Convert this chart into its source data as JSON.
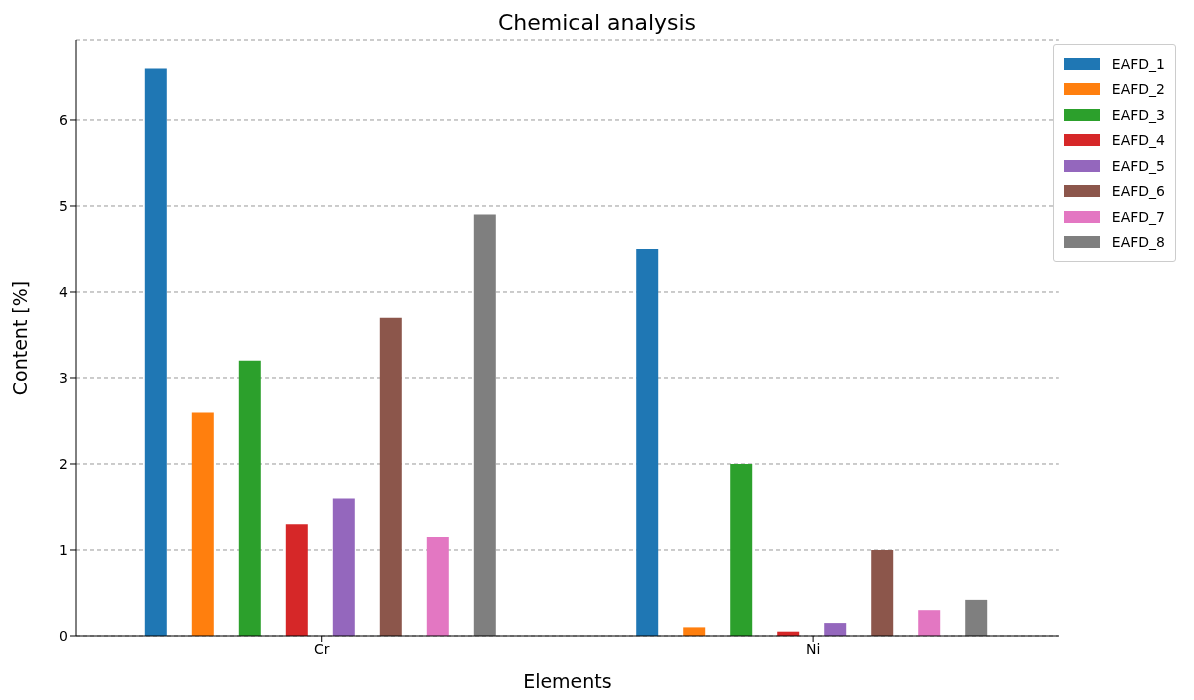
{
  "chart_data": {
    "type": "bar",
    "title": "Chemical analysis",
    "xlabel": "Elements",
    "ylabel": "Content [%]",
    "categories": [
      "Cr",
      "Ni"
    ],
    "series": [
      {
        "name": "EAFD_1",
        "color": "#1f77b4",
        "values": [
          6.6,
          4.5
        ]
      },
      {
        "name": "EAFD_2",
        "color": "#ff7f0e",
        "values": [
          2.6,
          0.1
        ]
      },
      {
        "name": "EAFD_3",
        "color": "#2ca02c",
        "values": [
          3.2,
          2.0
        ]
      },
      {
        "name": "EAFD_4",
        "color": "#d62728",
        "values": [
          1.3,
          0.05
        ]
      },
      {
        "name": "EAFD_5",
        "color": "#9467bd",
        "values": [
          1.6,
          0.15
        ]
      },
      {
        "name": "EAFD_6",
        "color": "#8c564b",
        "values": [
          3.7,
          1.0
        ]
      },
      {
        "name": "EAFD_7",
        "color": "#e377c2",
        "values": [
          1.15,
          0.3
        ]
      },
      {
        "name": "EAFD_8",
        "color": "#7f7f7f",
        "values": [
          4.9,
          0.42
        ]
      }
    ],
    "ylim": [
      0,
      6.93
    ],
    "yticks": [
      0,
      1,
      2,
      3,
      4,
      5,
      6
    ],
    "grid": "y",
    "legend": "top right"
  }
}
